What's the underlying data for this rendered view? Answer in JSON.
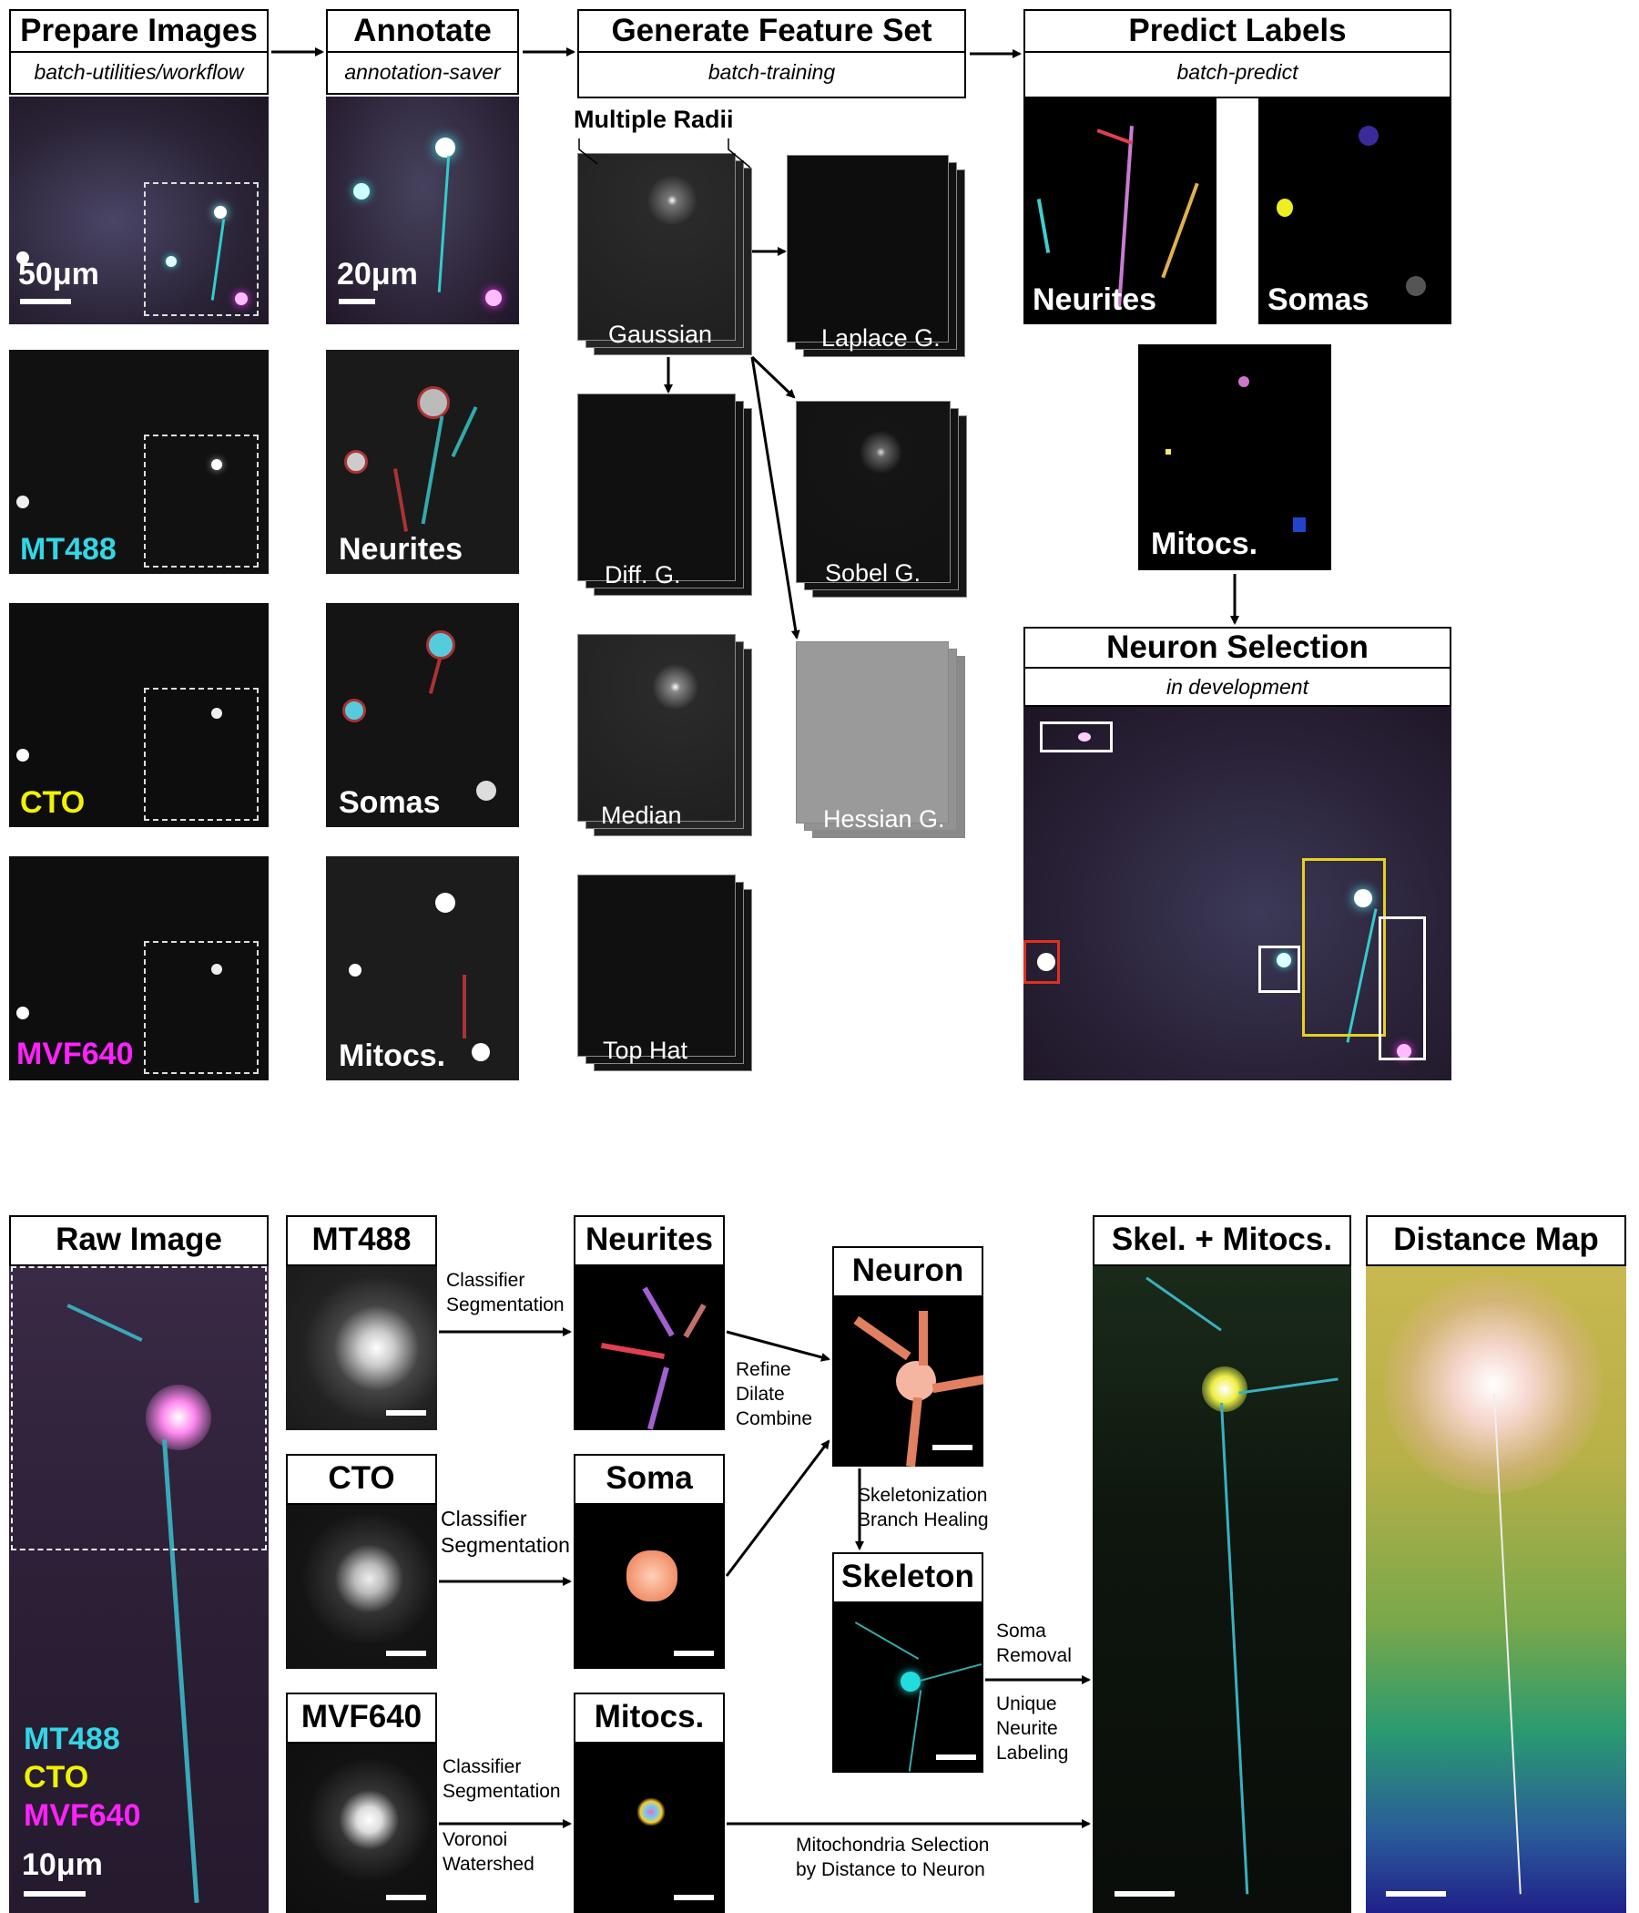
{
  "top": {
    "prepare": {
      "title": "Prepare Images",
      "subtitle": "batch-utilities/workflow",
      "scale": "50μm",
      "channels": [
        "MT488",
        "CTO",
        "MVF640"
      ]
    },
    "annotate": {
      "title": "Annotate",
      "subtitle": "annotation-saver",
      "scale": "20μm",
      "labels": [
        "Neurites",
        "Somas",
        "Mitocs."
      ]
    },
    "feature": {
      "title": "Generate Feature Set",
      "subtitle": "batch-training",
      "radii": "Multiple Radii",
      "filters": [
        "Gaussian",
        "Laplace G.",
        "Diff. G.",
        "Sobel G.",
        "Median",
        "Hessian G.",
        "Top Hat"
      ]
    },
    "predict": {
      "title": "Predict Labels",
      "subtitle": "batch-predict",
      "labels": [
        "Neurites",
        "Somas",
        "Mitocs."
      ]
    },
    "selection": {
      "title": "Neuron Selection",
      "subtitle": "in development"
    }
  },
  "bottom": {
    "raw": {
      "title": "Raw Image",
      "channels": [
        "MT488",
        "CTO",
        "MVF640"
      ],
      "scale": "10μm"
    },
    "channels": [
      "MT488",
      "CTO",
      "MVF640"
    ],
    "outputs": {
      "neurites": "Neurites",
      "soma": "Soma",
      "mitocs": "Mitocs."
    },
    "neuron": "Neuron",
    "skeleton": "Skeleton",
    "skelmito": "Skel. + Mitocs.",
    "distmap": "Distance Map",
    "notes": {
      "classifier1": "Classifier",
      "segmentation1": "Segmentation",
      "classifier2": "Classifier",
      "segmentation2": "Segmentation",
      "classifier3": "Classifier",
      "segmentation3": "Segmentation",
      "voronoi": "Voronoi",
      "watershed": "Watershed",
      "refine": "Refine",
      "dilate": "Dilate",
      "combine": "Combine",
      "skeletonization": "Skeletonization",
      "branch": "Branch Healing",
      "soma": "Soma",
      "removal": "Removal",
      "unique": "Unique",
      "neurite": "Neurite",
      "labeling": "Labeling",
      "mito1": "Mitochondria Selection",
      "mito2": "by Distance to Neuron"
    }
  },
  "colors": {
    "cyan": "#33d6e6",
    "yellow": "#f2f200",
    "magenta": "#ff22ff",
    "red": "#e0301e",
    "selection_yellow": "#e6d020"
  }
}
